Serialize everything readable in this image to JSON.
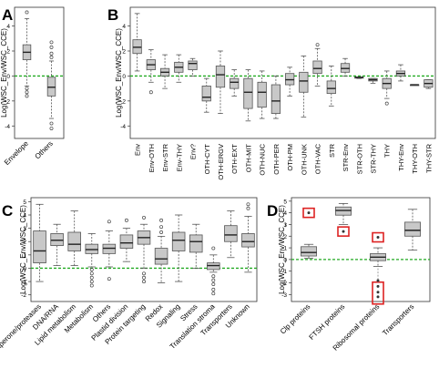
{
  "ylabel": "Log(WSC_Env/WSC_CCE)",
  "colors": {
    "box": "#c8c8c8",
    "outline": "#555555",
    "refline": "#22aa22",
    "marker": "#dd2222"
  },
  "chart_data": [
    {
      "panel": "A",
      "type": "box",
      "ylim": [
        -5,
        5.5
      ],
      "yticks": [
        -4,
        -2,
        0,
        2,
        4
      ],
      "ylabel": "Log(WSC_Env/WSC_CCE)",
      "refline": 0,
      "categories": [
        "Envelope",
        "Others"
      ],
      "boxes": [
        {
          "label": "Envelope",
          "min": -0.8,
          "q1": 1.3,
          "median": 1.9,
          "q3": 2.5,
          "max": 4.6,
          "outliers": [
            5.1,
            -1.0,
            -1.3,
            -1.6
          ]
        },
        {
          "label": "Others",
          "min": -3.4,
          "q1": -1.6,
          "median": -0.9,
          "q3": -0.1,
          "max": 1.2,
          "outliers": [
            1.5,
            1.8,
            2.3,
            2.7,
            -3.8,
            -4.2
          ]
        }
      ]
    },
    {
      "panel": "B",
      "type": "box",
      "ylim": [
        -5,
        5.5
      ],
      "yticks": [
        -4,
        -2,
        0,
        2,
        4
      ],
      "ylabel": "Log(WSC_Env/WSC_CCE)",
      "refline": 0,
      "categories": [
        "Env",
        "Env-OTH",
        "Env-STR",
        "Env-THY",
        "Env?",
        "OTH-CYT",
        "OTH-ERGV",
        "OTH-EXT",
        "OTH-MIT",
        "OTH-NUC",
        "OTH-PER",
        "OTH-PM",
        "OTH-UNK",
        "OTH-VAC",
        "STR",
        "STR-Env",
        "STR-OTH",
        "STR-THY",
        "THY",
        "THY-Env",
        "THY-OTH",
        "THY-STR"
      ],
      "boxes": [
        {
          "label": "Env",
          "min": 0.4,
          "q1": 1.8,
          "median": 2.3,
          "q3": 2.9,
          "max": 5.0,
          "outliers": []
        },
        {
          "label": "Env-OTH",
          "min": -0.5,
          "q1": 0.5,
          "median": 0.9,
          "q3": 1.3,
          "max": 2.1,
          "outliers": [
            -1.3
          ]
        },
        {
          "label": "Env-STR",
          "min": -1.0,
          "q1": 0.0,
          "median": 0.3,
          "q3": 0.6,
          "max": 1.7,
          "outliers": []
        },
        {
          "label": "Env-THY",
          "min": -0.5,
          "q1": 0.3,
          "median": 0.7,
          "q3": 1.1,
          "max": 1.7,
          "outliers": []
        },
        {
          "label": "Env?",
          "min": 0.0,
          "q1": 0.5,
          "median": 1.0,
          "q3": 1.2,
          "max": 1.4,
          "outliers": []
        },
        {
          "label": "OTH-CYT",
          "min": -2.9,
          "q1": -2.0,
          "median": -1.7,
          "q3": -0.8,
          "max": -0.2,
          "outliers": []
        },
        {
          "label": "OTH-ERGV",
          "min": -3.0,
          "q1": -0.9,
          "median": 0.1,
          "q3": 0.8,
          "max": 2.0,
          "outliers": []
        },
        {
          "label": "OTH-EXT",
          "min": -1.6,
          "q1": -1.0,
          "median": -0.5,
          "q3": -0.2,
          "max": 0.5,
          "outliers": []
        },
        {
          "label": "OTH-MIT",
          "min": -3.6,
          "q1": -2.6,
          "median": -1.3,
          "q3": -0.2,
          "max": 0.5,
          "outliers": []
        },
        {
          "label": "OTH-NUC",
          "min": -3.4,
          "q1": -2.5,
          "median": -1.3,
          "q3": -0.5,
          "max": 0.4,
          "outliers": []
        },
        {
          "label": "OTH-PER",
          "min": -3.4,
          "q1": -3.0,
          "median": -2.0,
          "q3": -0.7,
          "max": 0.0,
          "outliers": []
        },
        {
          "label": "OTH-PM",
          "min": -1.6,
          "q1": -0.7,
          "median": -0.3,
          "q3": 0.2,
          "max": 0.7,
          "outliers": []
        },
        {
          "label": "OTH-UNK",
          "min": -3.3,
          "q1": -1.3,
          "median": -0.4,
          "q3": 0.3,
          "max": 1.6,
          "outliers": []
        },
        {
          "label": "OTH-VAC",
          "min": -0.8,
          "q1": 0.2,
          "median": 0.6,
          "q3": 1.2,
          "max": 2.2,
          "outliers": [
            2.5
          ]
        },
        {
          "label": "STR",
          "min": -2.4,
          "q1": -1.4,
          "median": -1.0,
          "q3": -0.4,
          "max": 0.8,
          "outliers": []
        },
        {
          "label": "STR-Env",
          "min": 0.0,
          "q1": 0.3,
          "median": 0.6,
          "q3": 1.0,
          "max": 1.4,
          "outliers": []
        },
        {
          "label": "STR-OTH",
          "min": -0.2,
          "q1": -0.1,
          "median": -0.1,
          "q3": -0.1,
          "max": -0.1,
          "outliers": []
        },
        {
          "label": "STR-THY",
          "min": -0.6,
          "q1": -0.4,
          "median": -0.3,
          "q3": -0.2,
          "max": -0.2,
          "outliers": []
        },
        {
          "label": "THY",
          "min": -1.8,
          "q1": -1.0,
          "median": -0.6,
          "q3": -0.2,
          "max": 0.4,
          "outliers": [
            -2.2
          ]
        },
        {
          "label": "THY-Env",
          "min": -0.4,
          "q1": 0.0,
          "median": 0.2,
          "q3": 0.4,
          "max": 0.9,
          "outliers": []
        },
        {
          "label": "THY-OTH",
          "min": -0.7,
          "q1": -0.7,
          "median": -0.7,
          "q3": -0.7,
          "max": -0.7,
          "outliers": []
        },
        {
          "label": "THY-STR",
          "min": -1.0,
          "q1": -0.9,
          "median": -0.6,
          "q3": -0.3,
          "max": -0.3,
          "outliers": []
        }
      ]
    },
    {
      "panel": "C",
      "type": "box",
      "ylim": [
        -2.5,
        5.3
      ],
      "yticks": [
        -2,
        -1,
        0,
        1,
        2,
        3,
        4,
        5
      ],
      "ylabel": "Log(WSC_Env/WSC_CCE)",
      "refline": 0,
      "categories": [
        "Chaperone/proteases",
        "DNA/RNA",
        "Lipid metabolism",
        "Metabolism",
        "Others",
        "Plastid division",
        "Protein targeting",
        "Redox",
        "Signaling",
        "Stress",
        "Translation stroma",
        "Transporters",
        "Unknown"
      ],
      "boxes": [
        {
          "label": "Chaperone/proteases",
          "min": -1.0,
          "q1": 0.4,
          "median": 1.3,
          "q3": 2.8,
          "max": 4.8,
          "outliers": []
        },
        {
          "label": "DNA/RNA",
          "min": 0.2,
          "q1": 1.7,
          "median": 2.1,
          "q3": 2.6,
          "max": 3.3,
          "outliers": []
        },
        {
          "label": "Lipid metabolism",
          "min": 0.2,
          "q1": 1.3,
          "median": 1.8,
          "q3": 2.7,
          "max": 4.3,
          "outliers": []
        },
        {
          "label": "Metabolism",
          "min": 0.1,
          "q1": 1.1,
          "median": 1.4,
          "q3": 1.8,
          "max": 2.6,
          "outliers": [
            -0.1,
            -0.4,
            -0.7,
            -1.0,
            -1.3
          ]
        },
        {
          "label": "Others",
          "min": 0.1,
          "q1": 1.1,
          "median": 1.5,
          "q3": 1.8,
          "max": 2.8,
          "outliers": [
            -0.8,
            3.5
          ]
        },
        {
          "label": "Plastid division",
          "min": 0.5,
          "q1": 1.5,
          "median": 1.9,
          "q3": 2.5,
          "max": 3.0,
          "outliers": [
            3.6
          ]
        },
        {
          "label": "Protein targeting",
          "min": 0.0,
          "q1": 1.8,
          "median": 2.3,
          "q3": 2.8,
          "max": 3.3,
          "outliers": [
            -0.4,
            -0.7,
            -1.0,
            3.8
          ]
        },
        {
          "label": "Redox",
          "min": -1.1,
          "q1": 0.3,
          "median": 0.7,
          "q3": 1.5,
          "max": 2.4,
          "outliers": [
            2.7,
            3.1,
            3.6
          ]
        },
        {
          "label": "Signaling",
          "min": -1.0,
          "q1": 1.3,
          "median": 2.1,
          "q3": 2.7,
          "max": 4.0,
          "outliers": []
        },
        {
          "label": "Stress",
          "min": 0.0,
          "q1": 1.2,
          "median": 2.0,
          "q3": 2.5,
          "max": 3.3,
          "outliers": []
        },
        {
          "label": "Translation stroma",
          "min": -0.3,
          "q1": -0.1,
          "median": 0.2,
          "q3": 0.4,
          "max": 1.0,
          "outliers": [
            -0.6,
            -0.9,
            -1.2,
            -1.6,
            -1.9,
            1.5
          ]
        },
        {
          "label": "Transporters",
          "min": 0.8,
          "q1": 2.0,
          "median": 2.5,
          "q3": 3.2,
          "max": 4.3,
          "outliers": []
        },
        {
          "label": "Unknown",
          "min": -0.3,
          "q1": 1.6,
          "median": 2.0,
          "q3": 2.6,
          "max": 3.9,
          "outliers": [
            4.5,
            4.8
          ]
        }
      ]
    },
    {
      "panel": "D",
      "type": "box",
      "ylim": [
        -3.6,
        5.3
      ],
      "yticks": [
        -3,
        -2,
        -1,
        0,
        1,
        2,
        3,
        4,
        5
      ],
      "ylabel": "Log(WSC_Env/WSC_CCE)",
      "refline": 0,
      "categories": [
        "Clp proteins",
        "FTSH proteins",
        "Ribosomal proteins",
        "Transporters"
      ],
      "boxes": [
        {
          "label": "Clp proteins",
          "min": 0.1,
          "q1": 0.3,
          "median": 0.6,
          "q3": 1.1,
          "max": 1.3,
          "outliers": []
        },
        {
          "label": "FTSH proteins",
          "min": 3.0,
          "q1": 3.8,
          "median": 4.2,
          "q3": 4.5,
          "max": 4.8,
          "outliers": []
        },
        {
          "label": "Ribosomal proteins",
          "min": -0.6,
          "q1": -0.1,
          "median": 0.2,
          "q3": 0.5,
          "max": 1.0,
          "outliers": []
        },
        {
          "label": "Transporters",
          "min": 0.8,
          "q1": 2.0,
          "median": 2.5,
          "q3": 3.2,
          "max": 4.3,
          "outliers": []
        }
      ],
      "highlights": [
        {
          "category": "Clp proteins",
          "y": 4.0
        },
        {
          "category": "FTSH proteins",
          "y": 2.4
        },
        {
          "category": "Ribosomal proteins",
          "y": 1.9
        },
        {
          "category": "Ribosomal proteins",
          "y": -2.8
        }
      ]
    }
  ]
}
